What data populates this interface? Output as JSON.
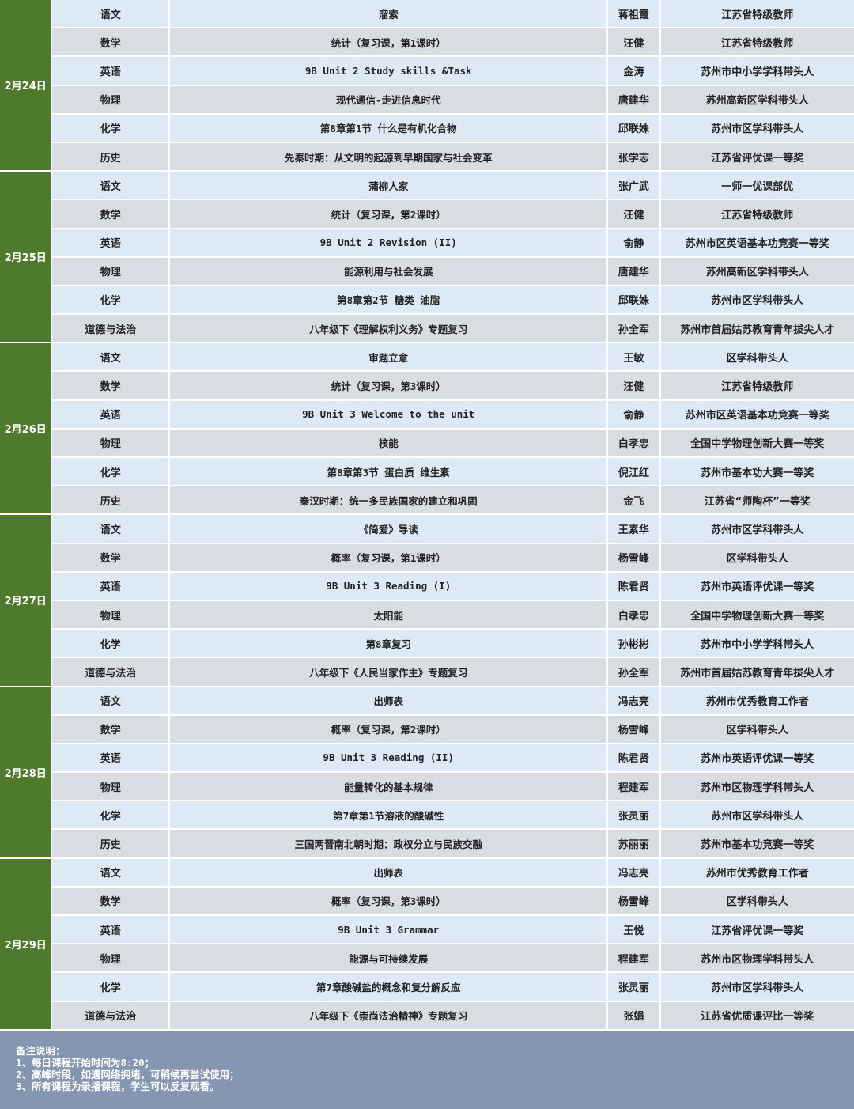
{
  "colors": {
    "date_bg": "#4f7a2e",
    "row_a": "#dde9f5",
    "row_b": "#d9dde3",
    "footer_bg": "#8496b0"
  },
  "schedule": [
    {
      "date": "2月24日",
      "rows": [
        [
          "语文",
          "溜索",
          "蒋祖霞",
          "江苏省特级教师"
        ],
        [
          "数学",
          "统计（复习课，第1课时）",
          "汪健",
          "江苏省特级教师"
        ],
        [
          "英语",
          "9B Unit 2 Study skills &Task",
          "金涛",
          "苏州市中小学学科带头人"
        ],
        [
          "物理",
          "现代通信-走进信息时代",
          "唐建华",
          "苏州高新区学科带头人"
        ],
        [
          "化学",
          "第8章第1节 什么是有机化合物",
          "邱联姝",
          "苏州市区学科带头人"
        ],
        [
          "历史",
          "先秦时期：从文明的起源到早期国家与社会变革",
          "张学志",
          "江苏省评优课一等奖"
        ]
      ]
    },
    {
      "date": "2月25日",
      "rows": [
        [
          "语文",
          "蒲柳人家",
          "张广武",
          "一师一优课部优"
        ],
        [
          "数学",
          "统计（复习课，第2课时）",
          "汪健",
          "江苏省特级教师"
        ],
        [
          "英语",
          "9B Unit 2 Revision (II)",
          "俞静",
          "苏州市区英语基本功竞赛一等奖"
        ],
        [
          "物理",
          "能源利用与社会发展",
          "唐建华",
          "苏州高新区学科带头人"
        ],
        [
          "化学",
          "第8章第2节 糖类 油脂",
          "邱联姝",
          "苏州市区学科带头人"
        ],
        [
          "道德与法治",
          "八年级下《理解权利义务》专题复习",
          "孙全军",
          "苏州市首届姑苏教育青年拔尖人才"
        ]
      ]
    },
    {
      "date": "2月26日",
      "rows": [
        [
          "语文",
          "审题立意",
          "王敏",
          "区学科带头人"
        ],
        [
          "数学",
          "统计（复习课，第3课时）",
          "汪健",
          "江苏省特级教师"
        ],
        [
          "英语",
          "9B Unit 3 Welcome to the unit",
          "俞静",
          "苏州市区英语基本功竞赛一等奖"
        ],
        [
          "物理",
          "核能",
          "白孝忠",
          "全国中学物理创新大赛一等奖"
        ],
        [
          "化学",
          "第8章第3节 蛋白质 维生素",
          "倪江红",
          "苏州市基本功大赛一等奖"
        ],
        [
          "历史",
          "秦汉时期：统一多民族国家的建立和巩固",
          "金飞",
          "江苏省“师陶杯”一等奖"
        ]
      ]
    },
    {
      "date": "2月27日",
      "rows": [
        [
          "语文",
          "《简爱》导读",
          "王素华",
          "苏州市区学科带头人"
        ],
        [
          "数学",
          "概率（复习课，第1课时）",
          "杨雪峰",
          "区学科带头人"
        ],
        [
          "英语",
          "9B Unit 3 Reading (I)",
          "陈君贤",
          "苏州市英语评优课一等奖"
        ],
        [
          "物理",
          "太阳能",
          "白孝忠",
          "全国中学物理创新大赛一等奖"
        ],
        [
          "化学",
          "第8章复习",
          "孙彬彬",
          "苏州市中小学学科带头人"
        ],
        [
          "道德与法治",
          "八年级下《人民当家作主》专题复习",
          "孙全军",
          "苏州市首届姑苏教育青年拔尖人才"
        ]
      ]
    },
    {
      "date": "2月28日",
      "rows": [
        [
          "语文",
          "出师表",
          "冯志亮",
          "苏州市优秀教育工作者"
        ],
        [
          "数学",
          "概率（复习课，第2课时）",
          "杨雪峰",
          "区学科带头人"
        ],
        [
          "英语",
          "9B Unit 3 Reading (II)",
          "陈君贤",
          "苏州市英语评优课一等奖"
        ],
        [
          "物理",
          "能量转化的基本规律",
          "程建军",
          "苏州市区物理学科带头人"
        ],
        [
          "化学",
          "第7章第1节溶液的酸碱性",
          "张灵丽",
          "苏州市区学科带头人"
        ],
        [
          "历史",
          "三国两晋南北朝时期：政权分立与民族交融",
          "苏丽丽",
          "苏州市基本功竞赛一等奖"
        ]
      ]
    },
    {
      "date": "2月29日",
      "rows": [
        [
          "语文",
          "出师表",
          "冯志亮",
          "苏州市优秀教育工作者"
        ],
        [
          "数学",
          "概率（复习课，第3课时）",
          "杨雪峰",
          "区学科带头人"
        ],
        [
          "英语",
          "9B Unit 3 Grammar",
          "王悦",
          "江苏省评优课一等奖"
        ],
        [
          "物理",
          "能源与可持续发展",
          "程建军",
          "苏州市区物理学科带头人"
        ],
        [
          "化学",
          "第7章酸碱盐的概念和复分解反应",
          "张灵丽",
          "苏州市区学科带头人"
        ],
        [
          "道德与法治",
          "八年级下《崇尚法治精神》专题复习",
          "张娟",
          "江苏省优质课评比一等奖"
        ]
      ]
    }
  ],
  "footer": {
    "title": "备注说明：",
    "notes": [
      "1、每日课程开始时间为8:20；",
      "2、高峰时段，如遇网络拥堵，可稍候再尝试使用；",
      "3、所有课程为录播课程，学生可以反复观看。"
    ]
  }
}
